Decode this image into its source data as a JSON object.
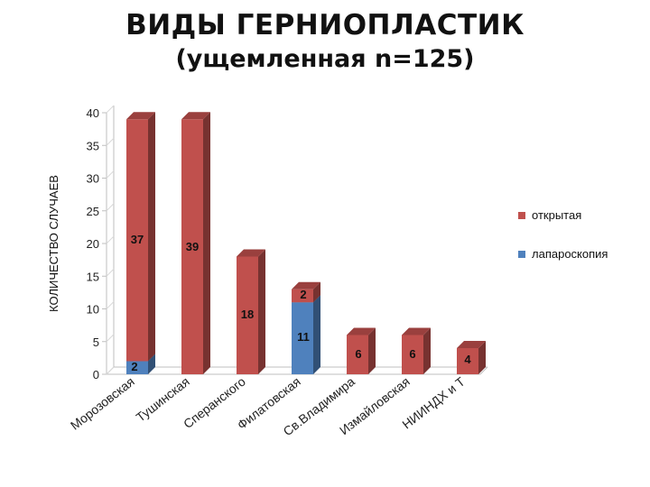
{
  "chart_data": {
    "type": "bar",
    "stacked": true,
    "title": "ВИДЫ ГЕРНИОПЛАСТИК",
    "subtitle": "(ущемленная n=125)",
    "ylabel": "КОЛИЧЕСТВО СЛУЧАЕВ",
    "xlabel": "",
    "ylim": [
      0,
      40
    ],
    "yticks": [
      "0",
      "5",
      "10",
      "15",
      "20",
      "25",
      "30",
      "35",
      "40"
    ],
    "categories": [
      "Морозовская",
      "Тушинская",
      "Сперанского",
      "Филатовская",
      "Св.Владимира",
      "Измайловская",
      "НИИНДХ и Т"
    ],
    "series": [
      {
        "name": "лапароскопия",
        "color": "#4f81bd",
        "values": [
          2,
          0,
          0,
          11,
          0,
          0,
          0
        ]
      },
      {
        "name": "открытая",
        "color": "#c0504d",
        "values": [
          37,
          39,
          18,
          2,
          6,
          6,
          4
        ]
      }
    ],
    "data_labels": [
      {
        "text": "37",
        "category": 0,
        "series": 1
      },
      {
        "text": "2",
        "category": 0,
        "series": 0
      },
      {
        "text": "39",
        "category": 1,
        "series": 1
      },
      {
        "text": "18",
        "category": 2,
        "series": 1
      },
      {
        "text": "2",
        "category": 3,
        "series": 1
      },
      {
        "text": "11",
        "category": 3,
        "series": 0
      },
      {
        "text": "6",
        "category": 4,
        "series": 1
      },
      {
        "text": "6",
        "category": 5,
        "series": 1
      },
      {
        "text": "4",
        "category": 6,
        "series": 1
      }
    ],
    "legend": {
      "position": "right",
      "entries": [
        "открытая",
        "лапароскопия"
      ]
    },
    "grid": false
  }
}
